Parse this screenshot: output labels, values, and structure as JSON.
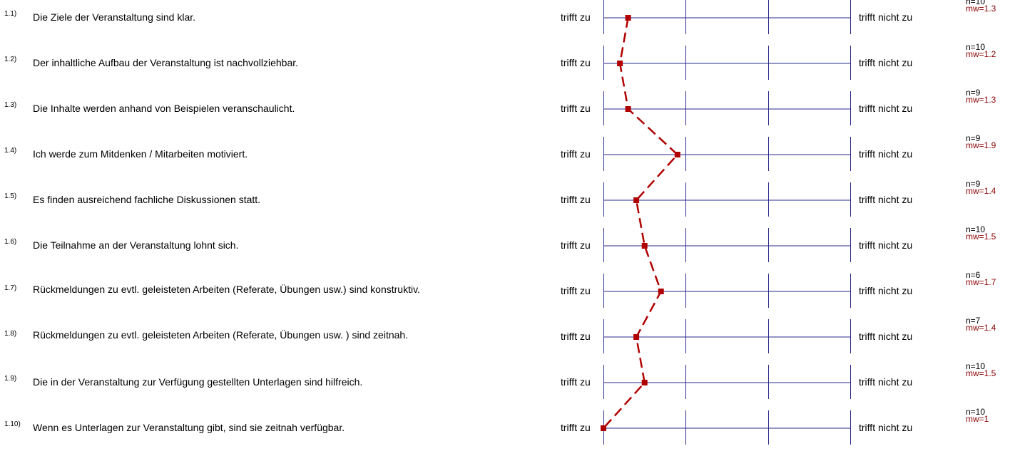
{
  "colors": {
    "axis": "#2a2a8c",
    "profile": "#b00000",
    "mw_text": "#8b0000"
  },
  "scale": {
    "left_label": "trifft zu",
    "right_label": "trifft nicht zu",
    "min": 1,
    "max": 4
  },
  "items": [
    {
      "num": "1.1)",
      "text": "Die Ziele der Veranstaltung sind klar.",
      "n": "n=10",
      "mw": "mw=1.3"
    },
    {
      "num": "1.2)",
      "text": "Der inhaltliche Aufbau der Veranstaltung ist nachvollziehbar.",
      "n": "n=10",
      "mw": "mw=1.2"
    },
    {
      "num": "1.3)",
      "text": "Die Inhalte werden anhand von Beispielen veranschaulicht.",
      "n": "n=9",
      "mw": "mw=1.3"
    },
    {
      "num": "1.4)",
      "text": "Ich werde zum Mitdenken / Mitarbeiten motiviert.",
      "n": "n=9",
      "mw": "mw=1.9"
    },
    {
      "num": "1.5)",
      "text": "Es finden ausreichend fachliche Diskussionen statt.",
      "n": "n=9",
      "mw": "mw=1.4"
    },
    {
      "num": "1.6)",
      "text": "Die Teilnahme an der Veranstaltung lohnt sich.",
      "n": "n=10",
      "mw": "mw=1.5"
    },
    {
      "num": "1.7)",
      "text": "Rückmeldungen zu evtl. geleisteten Arbeiten (Referate, Übungen usw.) sind konstruktiv.",
      "n": "n=6",
      "mw": "mw=1.7"
    },
    {
      "num": "1.8)",
      "text": "Rückmeldungen zu evtl. geleisteten Arbeiten (Referate, Übungen usw. ) sind zeitnah.",
      "n": "n=7",
      "mw": "mw=1.4"
    },
    {
      "num": "1.9)",
      "text": "Die in der Veranstaltung zur Verfügung gestellten Unterlagen sind hilfreich.",
      "n": "n=10",
      "mw": "mw=1.5"
    },
    {
      "num": "1.10)",
      "text": "Wenn es Unterlagen zur Veranstaltung gibt, sind sie zeitnah verfügbar.",
      "n": "n=10",
      "mw": "mw=1"
    }
  ],
  "chart_data": {
    "type": "line",
    "categories": [
      "1.1)",
      "1.2)",
      "1.3)",
      "1.4)",
      "1.5)",
      "1.6)",
      "1.7)",
      "1.8)",
      "1.9)",
      "1.10)"
    ],
    "values": [
      1.3,
      1.2,
      1.3,
      1.9,
      1.4,
      1.5,
      1.7,
      1.4,
      1.5,
      1.0
    ],
    "n": [
      10,
      10,
      9,
      9,
      9,
      10,
      6,
      7,
      10,
      10
    ],
    "xlim": [
      1,
      4
    ],
    "orientation": "horizontal-scale-per-row",
    "line_style": "dashed",
    "marker": "square"
  }
}
